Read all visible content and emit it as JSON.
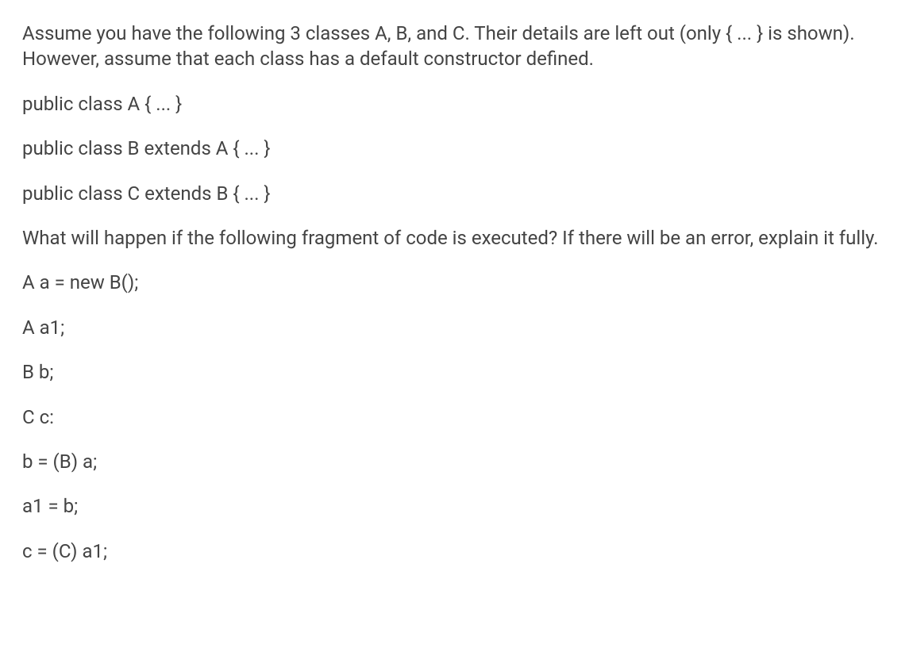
{
  "intro": {
    "p1": "Assume you have the following 3 classes A, B, and C.  Their details are left out (only { ... } is shown).  However, assume that each class has a default constructor defined."
  },
  "classDefs": {
    "a": "public class A { ... }",
    "b": "public class B extends A { ... }",
    "c": "public class C extends B { ... }"
  },
  "question": "What will happen if the following fragment of code is executed?  If there will be an error, explain it fully.",
  "code": {
    "line1": "A a = new B();",
    "line2": "A a1;",
    "line3": "B b;",
    "line4": "C c:",
    "line5": "b = (B) a;",
    "line6": "a1 = b;",
    "line7": "c = (C) a1;"
  }
}
